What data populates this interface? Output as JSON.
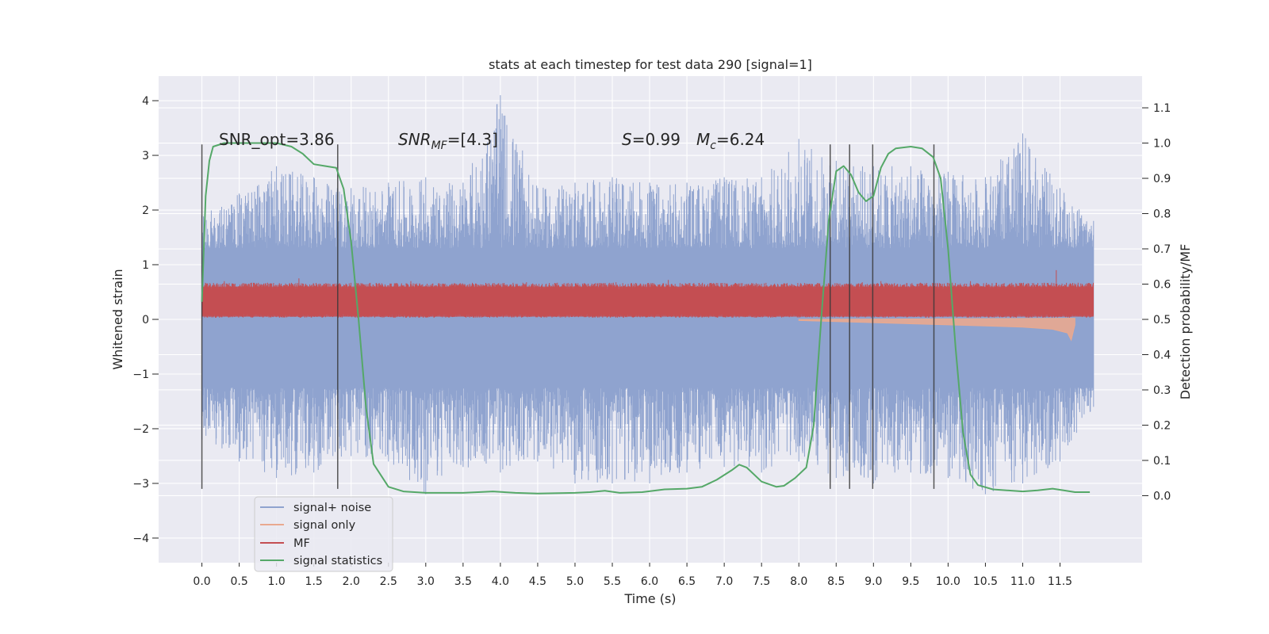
{
  "chart_data": {
    "type": "line",
    "title": "stats at each timestep for test data 290 [signal=1]",
    "xlabel": "Time (s)",
    "ylabel": "Whitened strain",
    "y2label": "Detection probability/MF",
    "xlim": [
      -0.58,
      12.6
    ],
    "ylim": [
      -4.45,
      4.45
    ],
    "y2lim": [
      -0.19,
      1.19
    ],
    "x_ticks": [
      0.0,
      0.5,
      1.0,
      1.5,
      2.0,
      2.5,
      3.0,
      3.5,
      4.0,
      4.5,
      5.0,
      5.5,
      6.0,
      6.5,
      7.0,
      7.5,
      8.0,
      8.5,
      9.0,
      9.5,
      10.0,
      10.5,
      11.0,
      11.5
    ],
    "x_tick_labels": [
      "0.0",
      "0.5",
      "1.0",
      "1.5",
      "2.0",
      "2.5",
      "3.0",
      "3.5",
      "4.0",
      "4.5",
      "5.0",
      "5.5",
      "6.0",
      "6.5",
      "7.0",
      "7.5",
      "8.0",
      "8.5",
      "9.0",
      "9.5",
      "10.0",
      "10.5",
      "11.0",
      "11.5"
    ],
    "y_ticks": [
      -4,
      -3,
      -2,
      -1,
      0,
      1,
      2,
      3,
      4
    ],
    "y_tick_labels": [
      "−4",
      "−3",
      "−2",
      "−1",
      "0",
      "1",
      "2",
      "3",
      "4"
    ],
    "y2_ticks": [
      0.0,
      0.1,
      0.2,
      0.3,
      0.4,
      0.5,
      0.6,
      0.7,
      0.8,
      0.9,
      1.0,
      1.1
    ],
    "y2_tick_labels": [
      "0.0",
      "0.1",
      "0.2",
      "0.3",
      "0.4",
      "0.5",
      "0.6",
      "0.7",
      "0.8",
      "0.9",
      "1.0",
      "1.1"
    ],
    "grid": true,
    "legend_position": "bottom-left",
    "annotations": {
      "snr_opt": "SNR_opt=3.86",
      "snr_mf_base": "SNR",
      "snr_mf_sub": "MF",
      "snr_mf_rest": "=[4.3]",
      "s_label": "S",
      "s_value": "=0.99",
      "mc_base": "M",
      "mc_sub": "c",
      "mc_value": "=6.24"
    },
    "series": [
      {
        "name": "signal+ noise",
        "color": "#8fa3cf",
        "axis": "left",
        "x_range": [
          0.0,
          11.95
        ],
        "envelope_upper": [
          [
            0.0,
            1.9
          ],
          [
            0.5,
            2.3
          ],
          [
            1.0,
            2.8
          ],
          [
            1.5,
            2.6
          ],
          [
            2.0,
            2.4
          ],
          [
            2.5,
            2.5
          ],
          [
            3.0,
            2.6
          ],
          [
            3.5,
            2.5
          ],
          [
            4.0,
            4.1
          ],
          [
            4.5,
            2.4
          ],
          [
            5.0,
            2.5
          ],
          [
            5.5,
            2.6
          ],
          [
            6.0,
            2.5
          ],
          [
            6.5,
            2.5
          ],
          [
            7.0,
            2.6
          ],
          [
            7.5,
            2.6
          ],
          [
            8.0,
            3.3
          ],
          [
            8.5,
            2.9
          ],
          [
            9.0,
            2.8
          ],
          [
            9.5,
            2.8
          ],
          [
            10.0,
            2.7
          ],
          [
            10.5,
            2.6
          ],
          [
            11.0,
            3.4
          ],
          [
            11.5,
            2.4
          ],
          [
            11.95,
            1.8
          ]
        ],
        "envelope_lower": [
          [
            0.0,
            -2.2
          ],
          [
            0.5,
            -2.6
          ],
          [
            1.0,
            -2.9
          ],
          [
            1.5,
            -2.8
          ],
          [
            2.0,
            -2.5
          ],
          [
            2.5,
            -2.6
          ],
          [
            3.0,
            -3.2
          ],
          [
            3.5,
            -2.7
          ],
          [
            4.0,
            -2.8
          ],
          [
            4.5,
            -2.6
          ],
          [
            5.0,
            -3.0
          ],
          [
            5.5,
            -3.0
          ],
          [
            6.0,
            -3.0
          ],
          [
            6.5,
            -2.8
          ],
          [
            7.0,
            -2.7
          ],
          [
            7.5,
            -2.8
          ],
          [
            8.0,
            -2.6
          ],
          [
            8.5,
            -2.9
          ],
          [
            9.0,
            -3.0
          ],
          [
            9.5,
            -2.8
          ],
          [
            10.0,
            -2.9
          ],
          [
            10.5,
            -3.2
          ],
          [
            11.0,
            -3.0
          ],
          [
            11.5,
            -2.6
          ],
          [
            11.95,
            -1.6
          ]
        ],
        "band": [
          -1.25,
          1.3
        ]
      },
      {
        "name": "signal only",
        "color": "#e9a98f",
        "axis": "left",
        "points": [
          [
            8.0,
            -0.02
          ],
          [
            9.0,
            -0.06
          ],
          [
            10.0,
            -0.1
          ],
          [
            10.5,
            -0.12
          ],
          [
            11.0,
            -0.14
          ],
          [
            11.4,
            -0.18
          ],
          [
            11.6,
            -0.25
          ],
          [
            11.65,
            -0.38
          ],
          [
            11.7,
            -0.1
          ]
        ]
      },
      {
        "name": "MF",
        "color": "#c44e52",
        "axis": "left",
        "band": [
          0.05,
          0.6
        ],
        "x_range": [
          0.0,
          11.95
        ],
        "spikes": [
          [
            0.3,
            0.7
          ],
          [
            1.3,
            0.75
          ],
          [
            2.75,
            0.65
          ],
          [
            2.8,
            0.7
          ],
          [
            4.35,
            0.68
          ],
          [
            5.55,
            0.68
          ],
          [
            6.25,
            0.72
          ],
          [
            8.85,
            0.68
          ],
          [
            9.1,
            0.7
          ],
          [
            10.3,
            0.7
          ],
          [
            11.45,
            0.9
          ]
        ]
      },
      {
        "name": "signal statistics",
        "color": "#55a868",
        "axis": "right",
        "points": [
          [
            0.0,
            0.55
          ],
          [
            0.05,
            0.85
          ],
          [
            0.1,
            0.95
          ],
          [
            0.15,
            0.99
          ],
          [
            0.3,
            1.0
          ],
          [
            0.6,
            1.0
          ],
          [
            1.0,
            1.0
          ],
          [
            1.2,
            0.99
          ],
          [
            1.35,
            0.97
          ],
          [
            1.5,
            0.94
          ],
          [
            1.65,
            0.935
          ],
          [
            1.8,
            0.93
          ],
          [
            1.9,
            0.87
          ],
          [
            2.0,
            0.72
          ],
          [
            2.1,
            0.5
          ],
          [
            2.2,
            0.25
          ],
          [
            2.3,
            0.09
          ],
          [
            2.5,
            0.025
          ],
          [
            2.7,
            0.012
          ],
          [
            3.0,
            0.008
          ],
          [
            3.5,
            0.008
          ],
          [
            3.9,
            0.012
          ],
          [
            4.2,
            0.008
          ],
          [
            4.5,
            0.006
          ],
          [
            5.0,
            0.008
          ],
          [
            5.2,
            0.01
          ],
          [
            5.4,
            0.014
          ],
          [
            5.6,
            0.008
          ],
          [
            5.9,
            0.01
          ],
          [
            6.2,
            0.018
          ],
          [
            6.5,
            0.02
          ],
          [
            6.7,
            0.025
          ],
          [
            6.9,
            0.045
          ],
          [
            7.1,
            0.072
          ],
          [
            7.2,
            0.088
          ],
          [
            7.3,
            0.08
          ],
          [
            7.5,
            0.04
          ],
          [
            7.7,
            0.025
          ],
          [
            7.8,
            0.028
          ],
          [
            7.95,
            0.05
          ],
          [
            8.1,
            0.08
          ],
          [
            8.2,
            0.2
          ],
          [
            8.3,
            0.5
          ],
          [
            8.4,
            0.78
          ],
          [
            8.5,
            0.92
          ],
          [
            8.6,
            0.935
          ],
          [
            8.7,
            0.91
          ],
          [
            8.8,
            0.86
          ],
          [
            8.9,
            0.835
          ],
          [
            9.0,
            0.85
          ],
          [
            9.1,
            0.93
          ],
          [
            9.2,
            0.97
          ],
          [
            9.3,
            0.985
          ],
          [
            9.5,
            0.99
          ],
          [
            9.65,
            0.985
          ],
          [
            9.8,
            0.96
          ],
          [
            9.9,
            0.9
          ],
          [
            10.0,
            0.7
          ],
          [
            10.1,
            0.42
          ],
          [
            10.2,
            0.18
          ],
          [
            10.3,
            0.06
          ],
          [
            10.4,
            0.03
          ],
          [
            10.6,
            0.018
          ],
          [
            11.0,
            0.012
          ],
          [
            11.2,
            0.015
          ],
          [
            11.4,
            0.02
          ],
          [
            11.55,
            0.015
          ],
          [
            11.7,
            0.01
          ],
          [
            11.9,
            0.01
          ]
        ]
      }
    ],
    "vertical_lines": [
      0.0,
      1.82,
      8.42,
      8.68,
      8.99,
      9.81
    ],
    "vertical_lines_extent": [
      -3.1,
      3.2
    ]
  }
}
